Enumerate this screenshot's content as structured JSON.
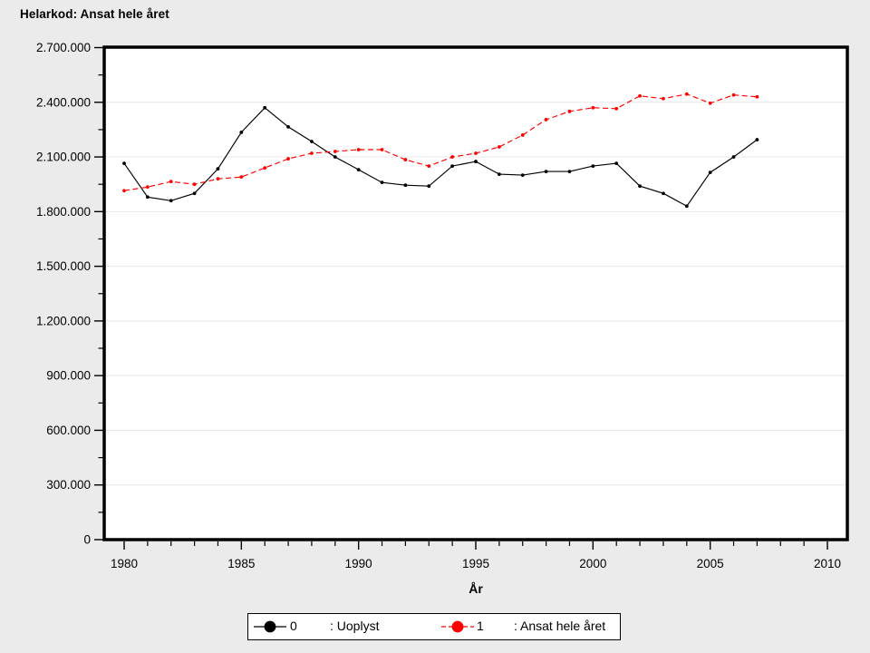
{
  "title": "Helarkod: Ansat hele året",
  "colors": {
    "page_background": "#ebebeb",
    "plot_background": "#ffffff",
    "plot_border": "#000000",
    "gridline": "#e8e8e8",
    "tick": "#000000",
    "series0": "#000000",
    "series1": "#ff0000",
    "legend_background": "#ffffff",
    "legend_border": "#000000"
  },
  "chart_data": {
    "type": "line",
    "title": "Helarkod: Ansat hele året",
    "xlabel": "År",
    "ylabel": "",
    "xlim": [
      1979.15,
      2010.85
    ],
    "ylim": [
      0,
      2700000
    ],
    "grid": "horizontal-major-only",
    "legend_position": "bottom-center",
    "x_major_ticks": [
      1980,
      1985,
      1990,
      1995,
      2000,
      2005,
      2010
    ],
    "x_tick_labels": [
      "1980",
      "1985",
      "1990",
      "1995",
      "2000",
      "2005",
      "2010"
    ],
    "x_minor_step": 1,
    "y_major_step": 300000,
    "y_minor_step": 150000,
    "y_tick_labels": [
      "0",
      "300.000",
      "600.000",
      "900.000",
      "1.200.000",
      "1.500.000",
      "1.800.000",
      "2.100.000",
      "2.400.000",
      "2.700.000"
    ],
    "x": [
      1980,
      1981,
      1982,
      1983,
      1984,
      1985,
      1986,
      1987,
      1988,
      1989,
      1990,
      1991,
      1992,
      1993,
      1994,
      1995,
      1996,
      1997,
      1998,
      1999,
      2000,
      2001,
      2002,
      2003,
      2004,
      2005,
      2006,
      2007
    ],
    "series": [
      {
        "name": "0",
        "label": ": Uoplyst",
        "color": "#000000",
        "line_style": "solid",
        "marker": "dot",
        "values": [
          2065000,
          1880000,
          1860000,
          1900000,
          2035000,
          2235000,
          2370000,
          2265000,
          2185000,
          2100000,
          2030000,
          1960000,
          1945000,
          1940000,
          2050000,
          2075000,
          2005000,
          2000000,
          2020000,
          2020000,
          2050000,
          2065000,
          1940000,
          1900000,
          1830000,
          2015000,
          2100000,
          2195000
        ]
      },
      {
        "name": "1",
        "label": ": Ansat hele året",
        "color": "#ff0000",
        "line_style": "dashed",
        "marker": "dot",
        "values": [
          1915000,
          1935000,
          1965000,
          1950000,
          1980000,
          1990000,
          2040000,
          2090000,
          2120000,
          2130000,
          2140000,
          2140000,
          2085000,
          2050000,
          2100000,
          2120000,
          2155000,
          2220000,
          2305000,
          2350000,
          2370000,
          2365000,
          2435000,
          2420000,
          2445000,
          2395000,
          2440000,
          2430000
        ]
      }
    ]
  },
  "legend": {
    "item0_symbol": "0",
    "item0_label": ": Uoplyst",
    "item1_symbol": "1",
    "item1_label": ": Ansat hele året"
  }
}
